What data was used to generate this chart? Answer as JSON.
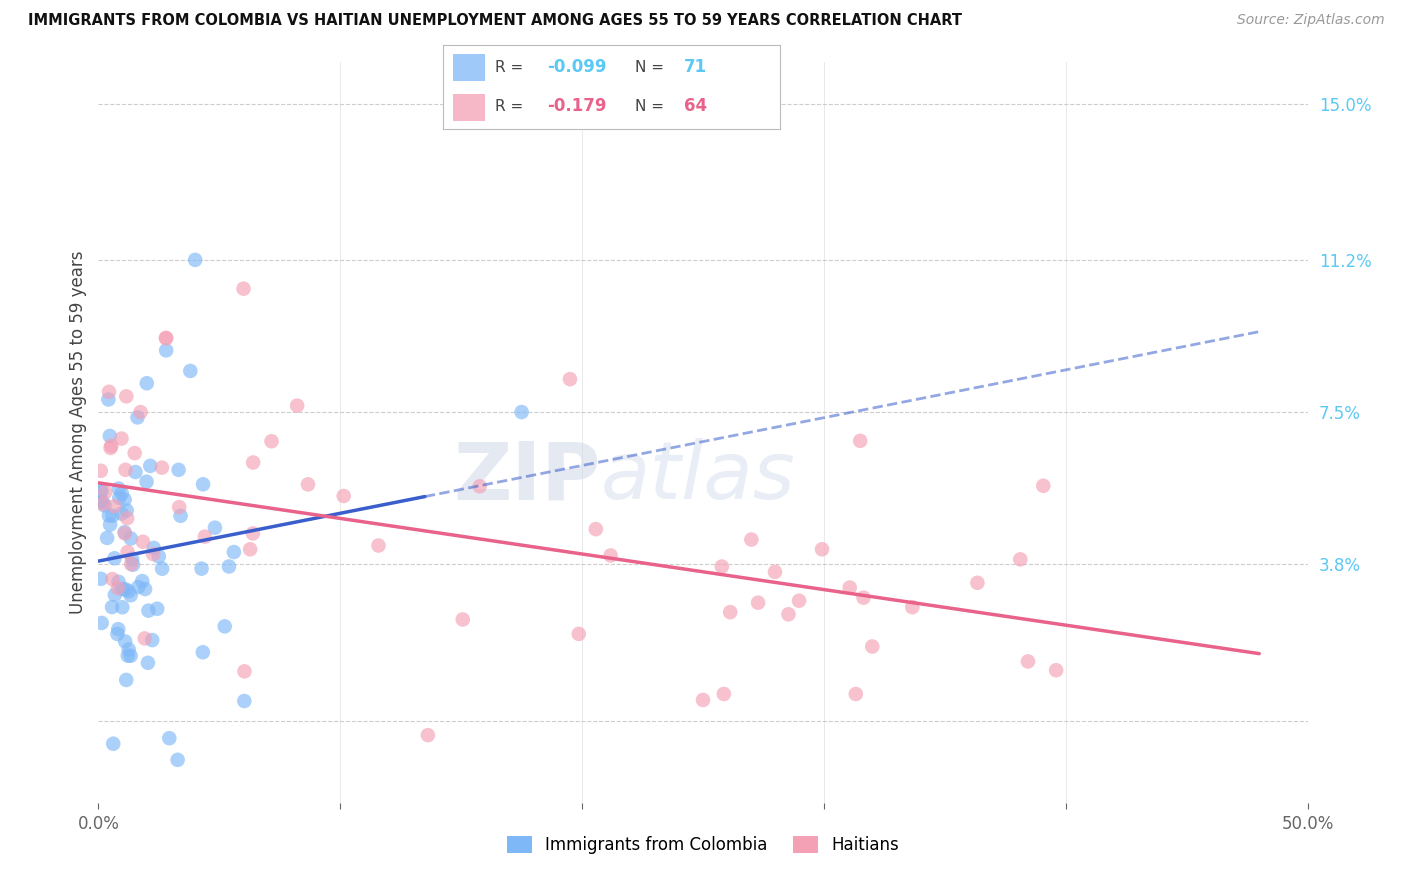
{
  "title": "IMMIGRANTS FROM COLOMBIA VS HAITIAN UNEMPLOYMENT AMONG AGES 55 TO 59 YEARS CORRELATION CHART",
  "source": "Source: ZipAtlas.com",
  "ylabel": "Unemployment Among Ages 55 to 59 years",
  "xlim": [
    0.0,
    0.5
  ],
  "ylim": [
    -0.02,
    0.16
  ],
  "ytick_positions": [
    0.0,
    0.038,
    0.075,
    0.112,
    0.15
  ],
  "ytick_labels_right": [
    "",
    "3.8%",
    "7.5%",
    "11.2%",
    "15.0%"
  ],
  "right_tick_color": "#5bc8f5",
  "colombia_color": "#7eb8f7",
  "haiti_color": "#f4a0b5",
  "colombia_line_color": "#3a5fcc",
  "haiti_line_color": "#e8628a",
  "background_color": "#ffffff",
  "grid_color": "#c8c8c8",
  "colombia_R": -0.099,
  "colombia_N": 71,
  "haiti_R": -0.179,
  "haiti_N": 64
}
